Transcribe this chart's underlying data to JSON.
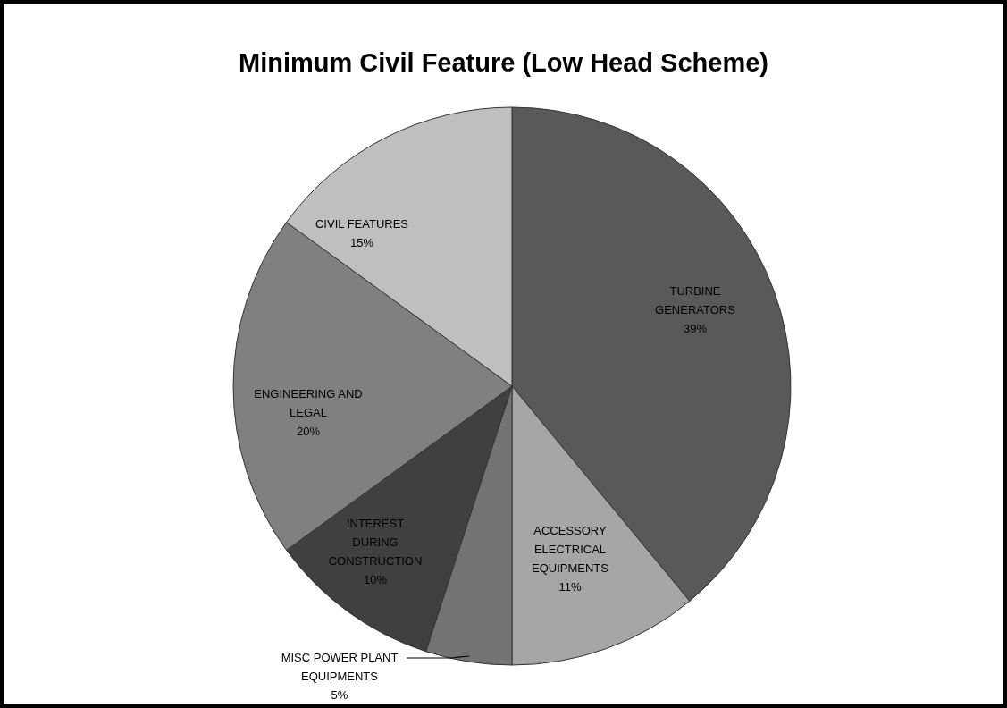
{
  "chart_data": {
    "type": "pie",
    "title": "Minimum Civil Feature (Low Head Scheme)",
    "categories": [
      "TURBINE GENERATORS",
      "ACCESSORY ELECTRICAL EQUIPMENTS",
      "MISC POWER PLANT EQUIPMENTS",
      "INTEREST DURING CONSTRUCTION",
      "ENGINEERING AND LEGAL",
      "CIVIL FEATURES"
    ],
    "values": [
      39,
      11,
      5,
      10,
      20,
      15
    ],
    "colors": [
      "#595959",
      "#a6a6a6",
      "#737373",
      "#404040",
      "#808080",
      "#bfbfbf"
    ],
    "value_labels": [
      "39%",
      "11%",
      "5%",
      "10%",
      "20%",
      "15%"
    ],
    "legend": false
  }
}
